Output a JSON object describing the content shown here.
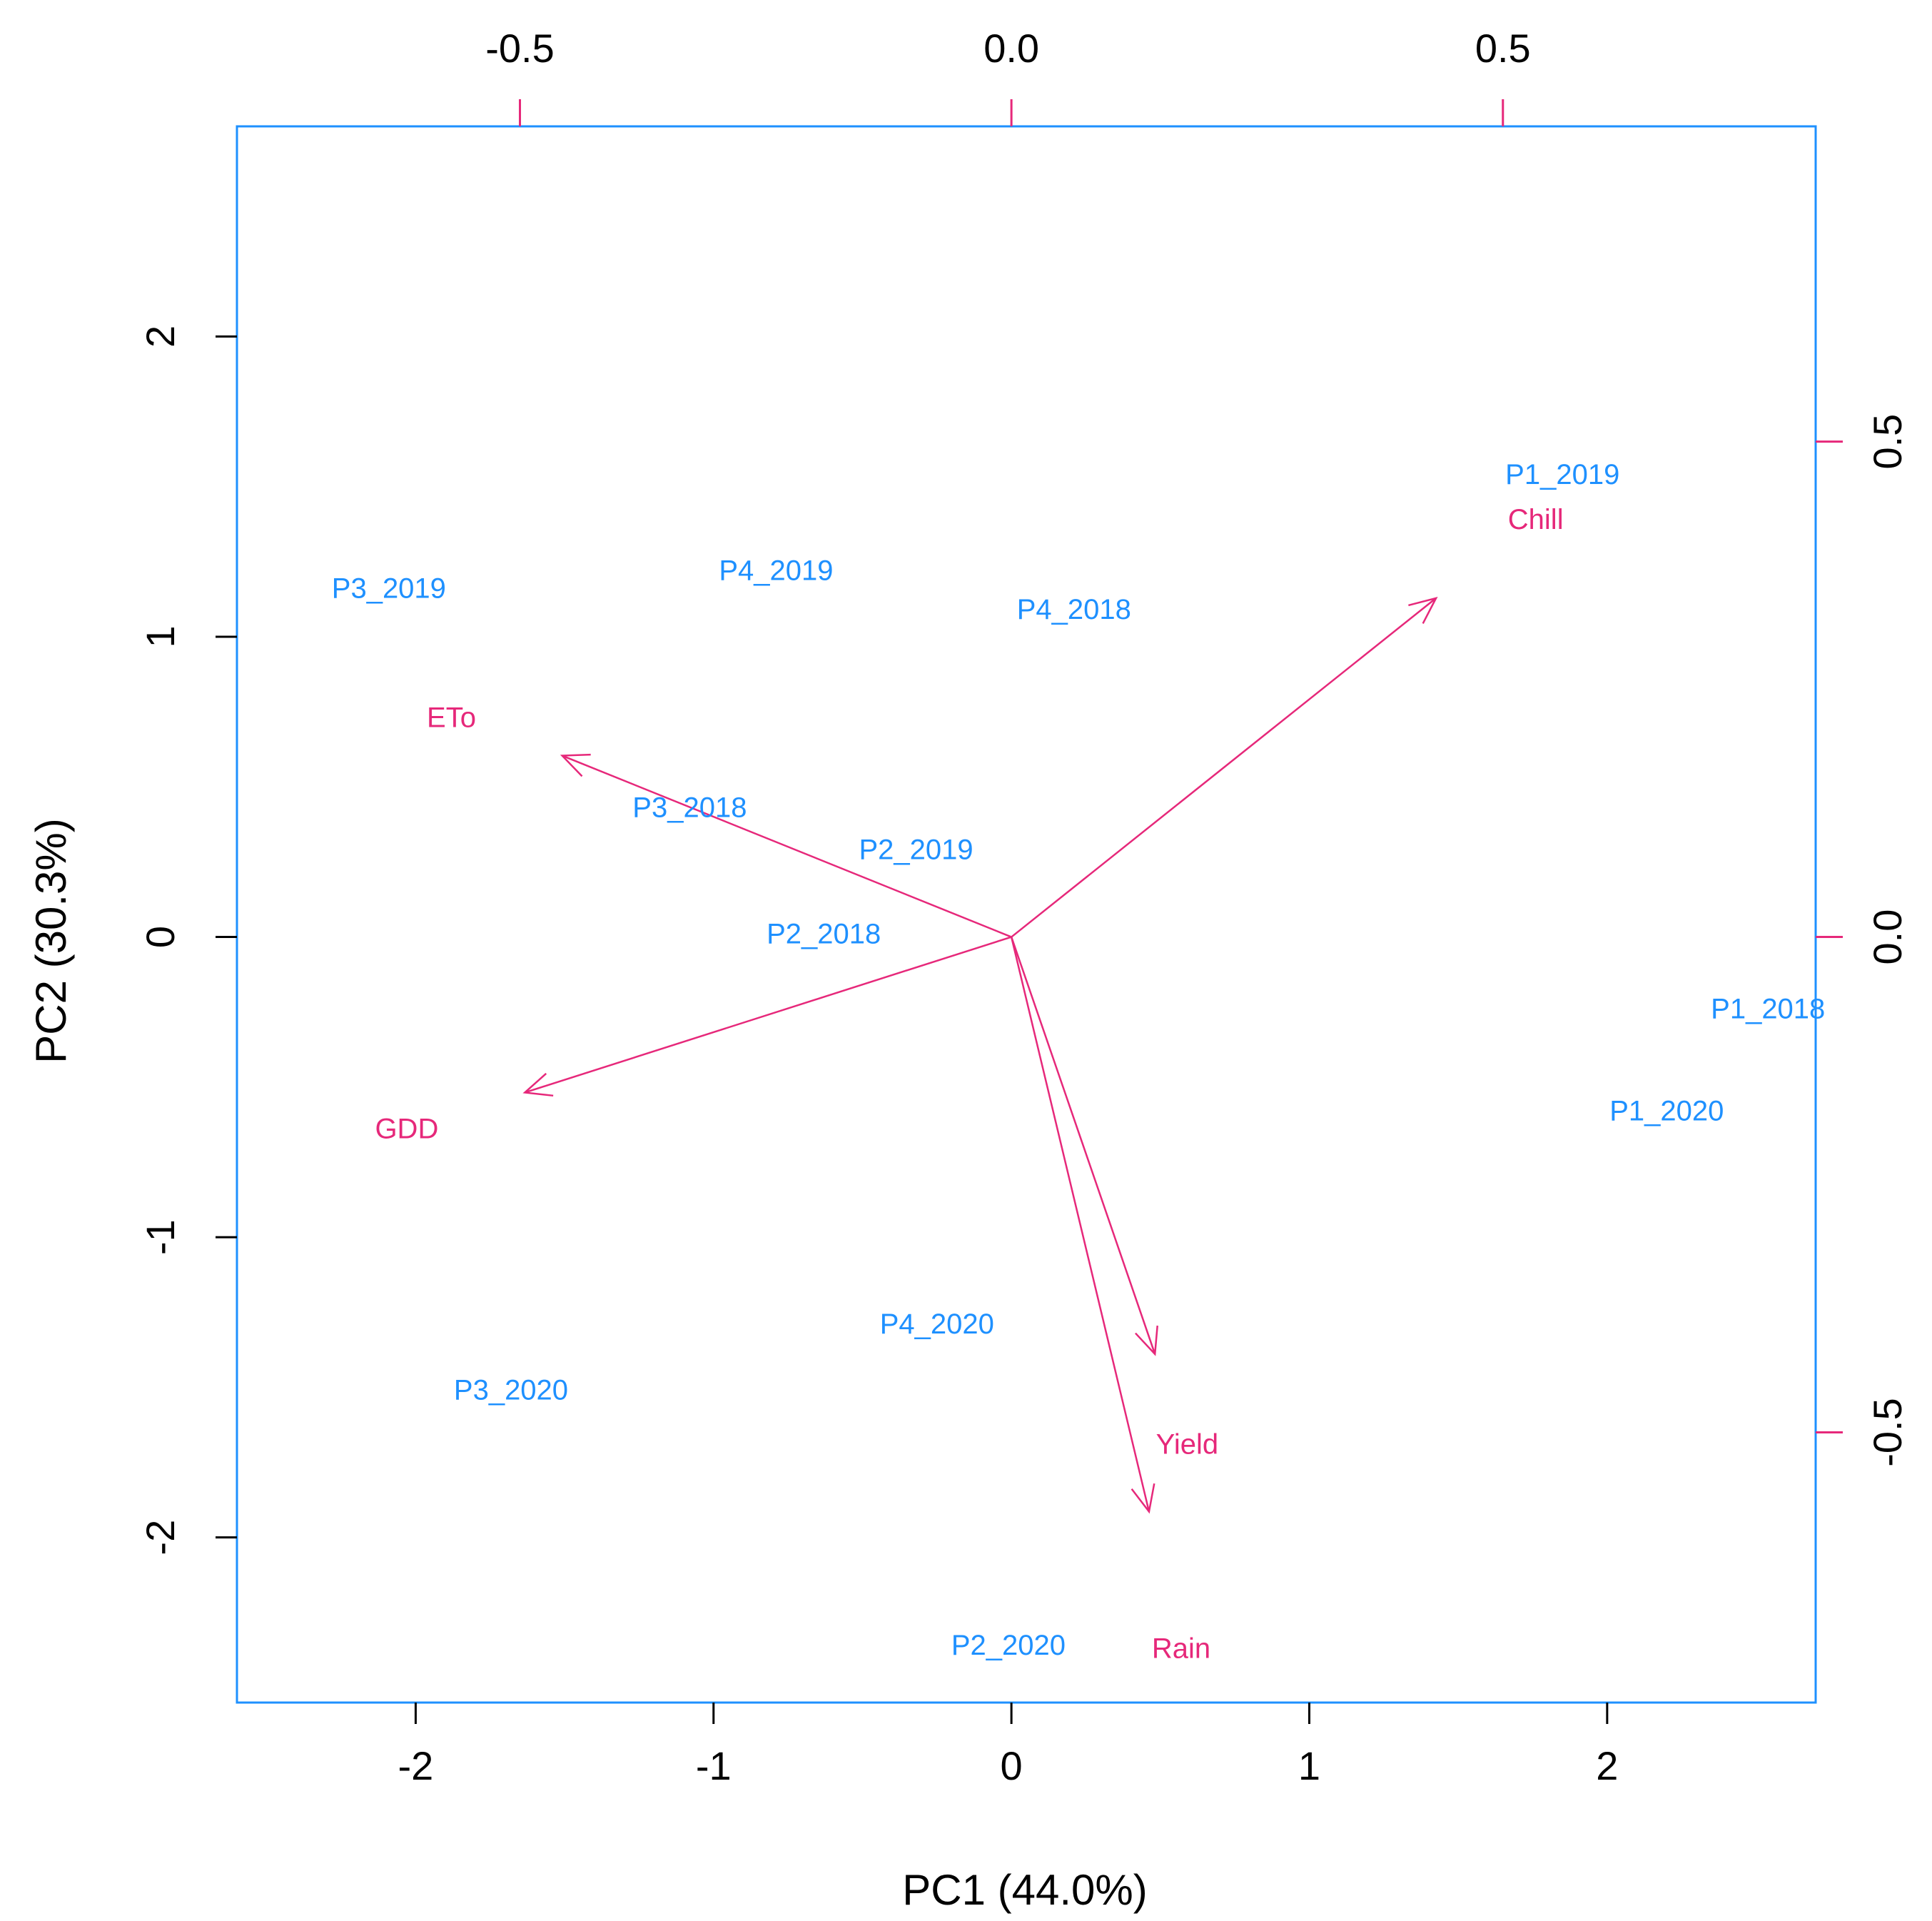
{
  "chart_data": {
    "type": "scatter",
    "subtype": "biplot",
    "xlabel": "PC1 (44.0%)",
    "ylabel": "PC2 (30.3%)",
    "xlim": [
      -2.6,
      2.7
    ],
    "ylim": [
      -2.55,
      2.7
    ],
    "x_ticks": [
      "-2",
      "-1",
      "0",
      "1",
      "2"
    ],
    "y_ticks": [
      "-2",
      "-1",
      "0",
      "1",
      "2"
    ],
    "x_tick_values": [
      -2,
      -1,
      0,
      1,
      2
    ],
    "y_tick_values": [
      -2,
      -1,
      0,
      1,
      2
    ],
    "top_ticks": [
      "-0.5",
      "0.0",
      "0.5"
    ],
    "top_tick_values": [
      -0.5,
      0.0,
      0.5
    ],
    "right_ticks": [
      "-0.5",
      "0.0",
      "0.5"
    ],
    "right_tick_values": [
      -0.5,
      0.0,
      0.5
    ],
    "loading_scale": 3.3,
    "colors": {
      "observations": "#1e90ff",
      "variables": "#e6287a",
      "frame": "#1e90ff"
    },
    "observations": [
      {
        "label": "P1_2019",
        "x": 1.85,
        "y": 1.54
      },
      {
        "label": "P3_2019",
        "x": -2.09,
        "y": 1.16
      },
      {
        "label": "P4_2019",
        "x": -0.79,
        "y": 1.22
      },
      {
        "label": "P4_2018",
        "x": 0.21,
        "y": 1.09
      },
      {
        "label": "P3_2018",
        "x": -1.08,
        "y": 0.43
      },
      {
        "label": "P2_2019",
        "x": -0.32,
        "y": 0.29
      },
      {
        "label": "P2_2018",
        "x": -0.63,
        "y": 0.01
      },
      {
        "label": "P1_2018",
        "x": 2.54,
        "y": -0.24
      },
      {
        "label": "P1_2020",
        "x": 2.2,
        "y": -0.58
      },
      {
        "label": "P4_2020",
        "x": -0.25,
        "y": -1.29
      },
      {
        "label": "P3_2020",
        "x": -1.68,
        "y": -1.51
      },
      {
        "label": "P2_2020",
        "x": -0.01,
        "y": -2.36
      }
    ],
    "variables": [
      {
        "label": "Chill",
        "x": 0.432,
        "y": 0.342,
        "label_x": 1.76,
        "label_y": 1.39
      },
      {
        "label": "ETo",
        "x": -0.457,
        "y": 0.183,
        "label_x": -1.88,
        "label_y": 0.73
      },
      {
        "label": "GDD",
        "x": -0.495,
        "y": -0.157,
        "label_x": -2.03,
        "label_y": -0.64
      },
      {
        "label": "Rain",
        "x": 0.146,
        "y": -0.421,
        "label_x": 0.57,
        "label_y": -2.37
      },
      {
        "label": "Yield",
        "x": 0.14,
        "y": -0.58,
        "label_x": 0.59,
        "label_y": -1.69
      }
    ]
  }
}
